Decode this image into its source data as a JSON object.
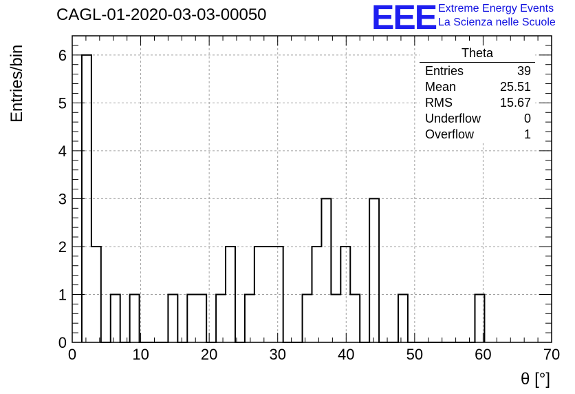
{
  "title": "CAGL-01-2020-03-03-00050",
  "logo": {
    "mark": "EEE",
    "line1": "Extreme Energy Events",
    "line2": "La Scienza nelle Scuole"
  },
  "stats": {
    "title": "Theta",
    "rows": [
      {
        "label": "Entries",
        "value": "39"
      },
      {
        "label": "Mean",
        "value": "25.51"
      },
      {
        "label": "RMS",
        "value": "15.67"
      },
      {
        "label": "Underflow",
        "value": "0"
      },
      {
        "label": "Overflow",
        "value": "1"
      }
    ]
  },
  "colors": {
    "axis": "#000000",
    "grid": "#a0a0a0",
    "logo": "#1e1ef0"
  },
  "chart_data": {
    "type": "bar",
    "histogram": true,
    "xlabel": "θ [°]",
    "ylabel": "Entries/bin",
    "xlim": [
      0,
      70
    ],
    "ylim": [
      0,
      6.4
    ],
    "bin_width": 1.4,
    "grid": true,
    "legend": "top-right",
    "x_ticks": [
      "0",
      "10",
      "20",
      "30",
      "40",
      "50",
      "60",
      "70"
    ],
    "y_ticks": [
      "0",
      "1",
      "2",
      "3",
      "4",
      "5",
      "6"
    ],
    "bins": [
      {
        "x": 1.4,
        "value": 6
      },
      {
        "x": 2.8,
        "value": 2
      },
      {
        "x": 4.2,
        "value": 0
      },
      {
        "x": 5.6,
        "value": 1
      },
      {
        "x": 7.0,
        "value": 0
      },
      {
        "x": 8.4,
        "value": 1
      },
      {
        "x": 9.8,
        "value": 0
      },
      {
        "x": 11.2,
        "value": 0
      },
      {
        "x": 12.6,
        "value": 0
      },
      {
        "x": 14.0,
        "value": 1
      },
      {
        "x": 15.4,
        "value": 0
      },
      {
        "x": 16.8,
        "value": 1
      },
      {
        "x": 18.2,
        "value": 1
      },
      {
        "x": 19.6,
        "value": 0
      },
      {
        "x": 21.0,
        "value": 1
      },
      {
        "x": 22.4,
        "value": 2
      },
      {
        "x": 23.8,
        "value": 0
      },
      {
        "x": 25.2,
        "value": 1
      },
      {
        "x": 26.6,
        "value": 2
      },
      {
        "x": 28.0,
        "value": 2
      },
      {
        "x": 29.4,
        "value": 2
      },
      {
        "x": 30.8,
        "value": 0
      },
      {
        "x": 32.2,
        "value": 0
      },
      {
        "x": 33.6,
        "value": 1
      },
      {
        "x": 35.0,
        "value": 2
      },
      {
        "x": 36.4,
        "value": 3
      },
      {
        "x": 37.8,
        "value": 1
      },
      {
        "x": 39.2,
        "value": 2
      },
      {
        "x": 40.6,
        "value": 1
      },
      {
        "x": 42.0,
        "value": 0
      },
      {
        "x": 43.4,
        "value": 3
      },
      {
        "x": 44.8,
        "value": 0
      },
      {
        "x": 46.2,
        "value": 0
      },
      {
        "x": 47.6,
        "value": 1
      },
      {
        "x": 49.0,
        "value": 0
      },
      {
        "x": 50.4,
        "value": 0
      },
      {
        "x": 51.8,
        "value": 0
      },
      {
        "x": 53.2,
        "value": 0
      },
      {
        "x": 54.6,
        "value": 0
      },
      {
        "x": 56.0,
        "value": 0
      },
      {
        "x": 57.4,
        "value": 0
      },
      {
        "x": 58.8,
        "value": 1
      }
    ]
  }
}
